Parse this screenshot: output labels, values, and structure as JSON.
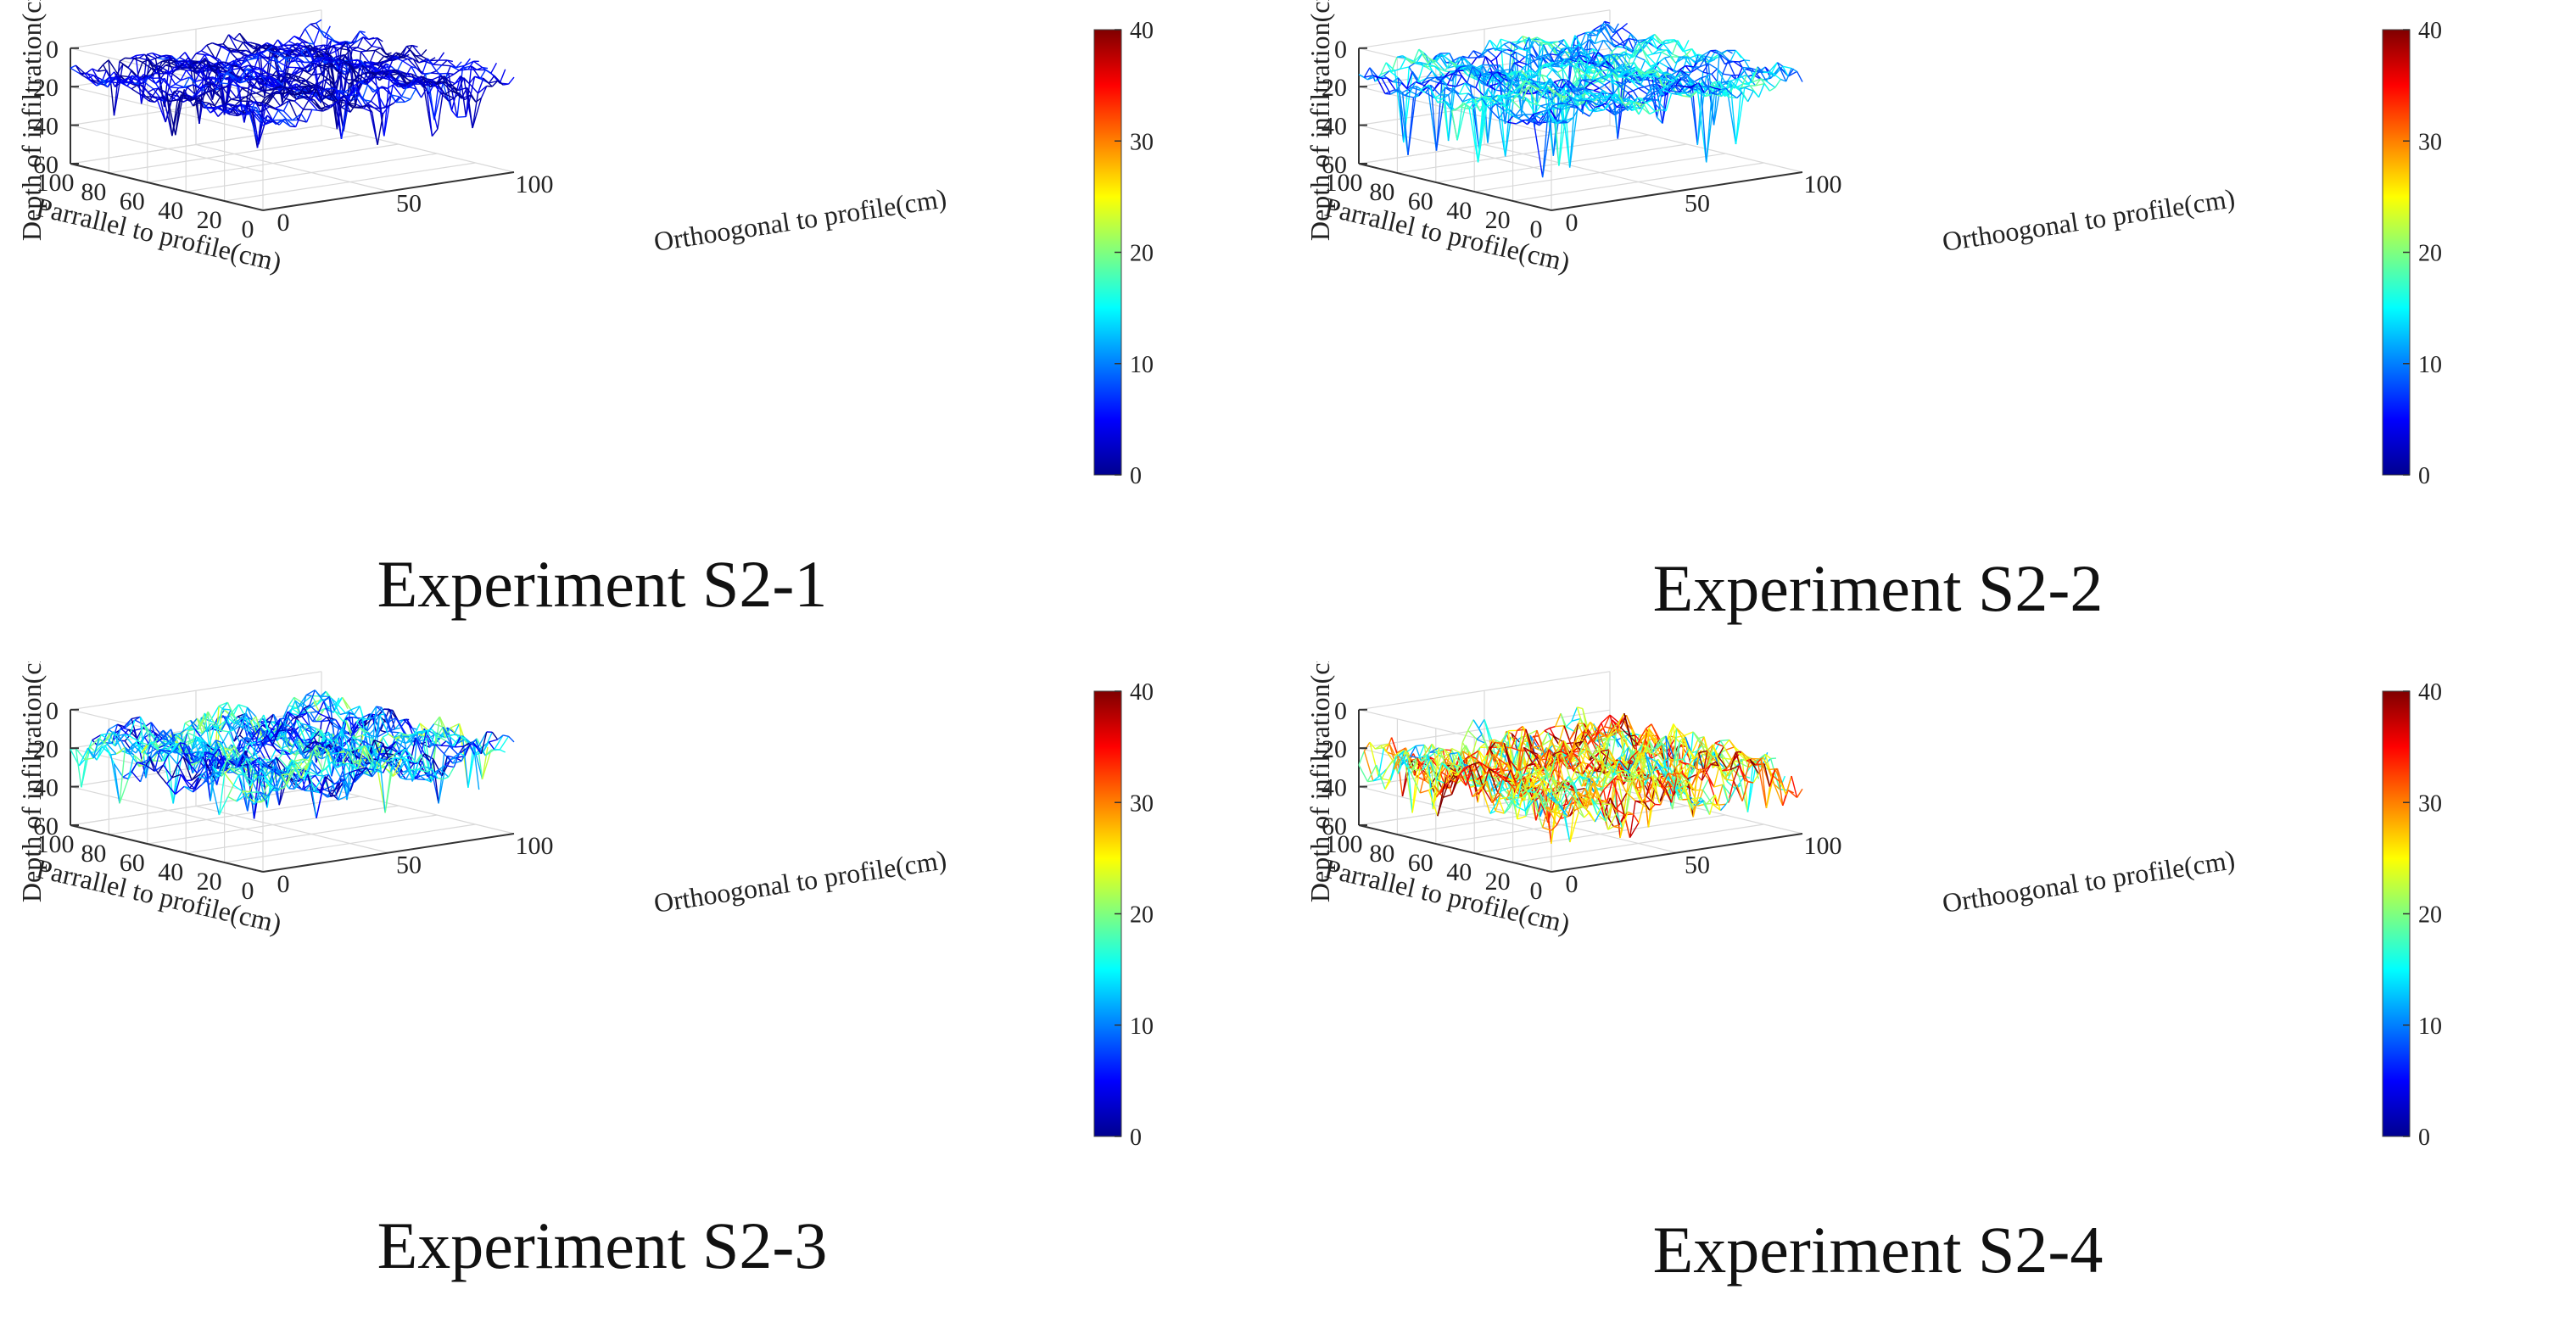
{
  "chart_data": [
    {
      "type": "surface3d",
      "title": "Experiment S2-1",
      "zlabel": "Depth of infiltration(cm)",
      "xlabel": "Orthoogonal to profile(cm)",
      "ylabel": "Parrallel to profile(cm)",
      "z_ticks": [
        "0",
        "20",
        "40",
        "60"
      ],
      "y_ticks": [
        "100",
        "80",
        "60",
        "40",
        "20",
        "0"
      ],
      "x_ticks": [
        "0",
        "50",
        "100"
      ],
      "zlim": [
        0,
        60
      ],
      "colorbar": {
        "range": [
          0,
          40
        ],
        "ticks": [
          "40",
          "30",
          "20",
          "10",
          "0"
        ]
      },
      "surface": {
        "mean_depth": 12,
        "depth_variation": 6,
        "color_mean": 3,
        "color_variation": 4,
        "max_spike_depth": 40
      }
    },
    {
      "type": "surface3d",
      "title": "Experiment S2-2",
      "zlabel": "Depth of infiltration(cm)",
      "xlabel": "Orthoogonal to profile(cm)",
      "ylabel": "Parrallel to profile(cm)",
      "z_ticks": [
        "0",
        "20",
        "40",
        "60"
      ],
      "y_ticks": [
        "100",
        "80",
        "60",
        "40",
        "20",
        "0"
      ],
      "x_ticks": [
        "0",
        "50",
        "100"
      ],
      "zlim": [
        0,
        60
      ],
      "colorbar": {
        "range": [
          0,
          40
        ],
        "ticks": [
          "40",
          "30",
          "20",
          "10",
          "0"
        ]
      },
      "surface": {
        "mean_depth": 13,
        "depth_variation": 7,
        "color_mean": 12,
        "color_variation": 6,
        "max_spike_depth": 52
      }
    },
    {
      "type": "surface3d",
      "title": "Experiment S2-3",
      "zlabel": "Depth of infiltration(cm)",
      "xlabel": "Orthoogonal to profile(cm)",
      "ylabel": "Parrallel to profile(cm)",
      "z_ticks": [
        "0",
        "20",
        "40",
        "60"
      ],
      "y_ticks": [
        "100",
        "80",
        "60",
        "40",
        "20",
        "0"
      ],
      "x_ticks": [
        "0",
        "50",
        "100"
      ],
      "zlim": [
        0,
        60
      ],
      "colorbar": {
        "range": [
          0,
          40
        ],
        "ticks": [
          "40",
          "30",
          "20",
          "10",
          "0"
        ]
      },
      "surface": {
        "mean_depth": 18,
        "depth_variation": 10,
        "color_mean": 11,
        "color_variation": 9,
        "max_spike_depth": 45
      }
    },
    {
      "type": "surface3d",
      "title": "Experiment S2-4",
      "zlabel": "Depth of infiltration(cm)",
      "xlabel": "Orthoogonal to profile(cm)",
      "ylabel": "Parrallel to profile(cm)",
      "z_ticks": [
        "0",
        "20",
        "40",
        "60"
      ],
      "y_ticks": [
        "100",
        "80",
        "60",
        "40",
        "20",
        "0"
      ],
      "x_ticks": [
        "0",
        "50",
        "100"
      ],
      "zlim": [
        0,
        60
      ],
      "colorbar": {
        "range": [
          0,
          40
        ],
        "ticks": [
          "40",
          "30",
          "20",
          "10",
          "0"
        ]
      },
      "surface": {
        "mean_depth": 28,
        "depth_variation": 12,
        "color_mean": 26,
        "color_variation": 12,
        "max_spike_depth": 55
      }
    }
  ],
  "colormap": {
    "name": "jet",
    "stops": [
      "#00008f",
      "#0000ff",
      "#007fff",
      "#00ffff",
      "#7fff7f",
      "#ffff00",
      "#ff7f00",
      "#ff0000",
      "#7f0000"
    ]
  }
}
